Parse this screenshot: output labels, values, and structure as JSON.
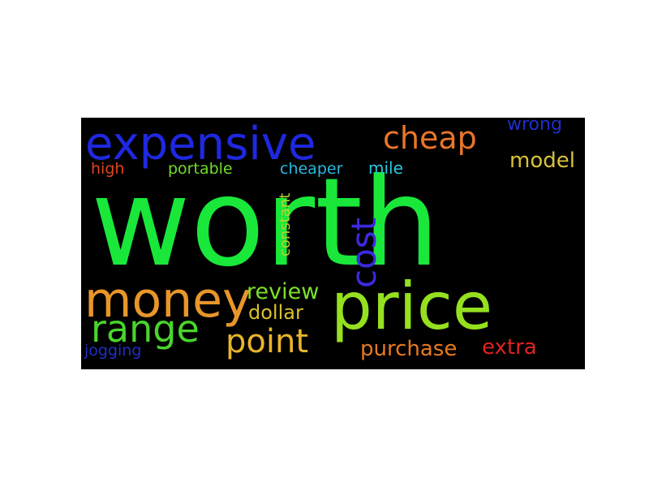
{
  "colors": {
    "background": "#000000",
    "page": "#ffffff"
  },
  "words": {
    "worth": {
      "text": "worth",
      "color": "#19e83a"
    },
    "expensive": {
      "text": "expensive",
      "color": "#1f28e0"
    },
    "price": {
      "text": "price",
      "color": "#95e01f"
    },
    "money": {
      "text": "money",
      "color": "#e8952a"
    },
    "cheap": {
      "text": "cheap",
      "color": "#e8762a"
    },
    "range": {
      "text": "range",
      "color": "#49d52c"
    },
    "point": {
      "text": "point",
      "color": "#e8b42a"
    },
    "cost": {
      "text": "cost",
      "color": "#3b2ae0"
    },
    "review": {
      "text": "review",
      "color": "#7ce02a"
    },
    "dollar": {
      "text": "dollar",
      "color": "#d9c12a"
    },
    "purchase": {
      "text": "purchase",
      "color": "#e87a1f"
    },
    "extra": {
      "text": "extra",
      "color": "#e02222"
    },
    "model": {
      "text": "model",
      "color": "#d8c33a"
    },
    "wrong": {
      "text": "wrong",
      "color": "#1f2fc9"
    },
    "high": {
      "text": "high",
      "color": "#e0441f"
    },
    "portable": {
      "text": "portable",
      "color": "#6fdc2a"
    },
    "cheaper": {
      "text": "cheaper",
      "color": "#2ab8e0"
    },
    "mile": {
      "text": "mile",
      "color": "#2ac8e0"
    },
    "constant": {
      "text": "constant",
      "color": "#b7d42a"
    },
    "jogging": {
      "text": "jogging",
      "color": "#1f2fc9"
    }
  }
}
